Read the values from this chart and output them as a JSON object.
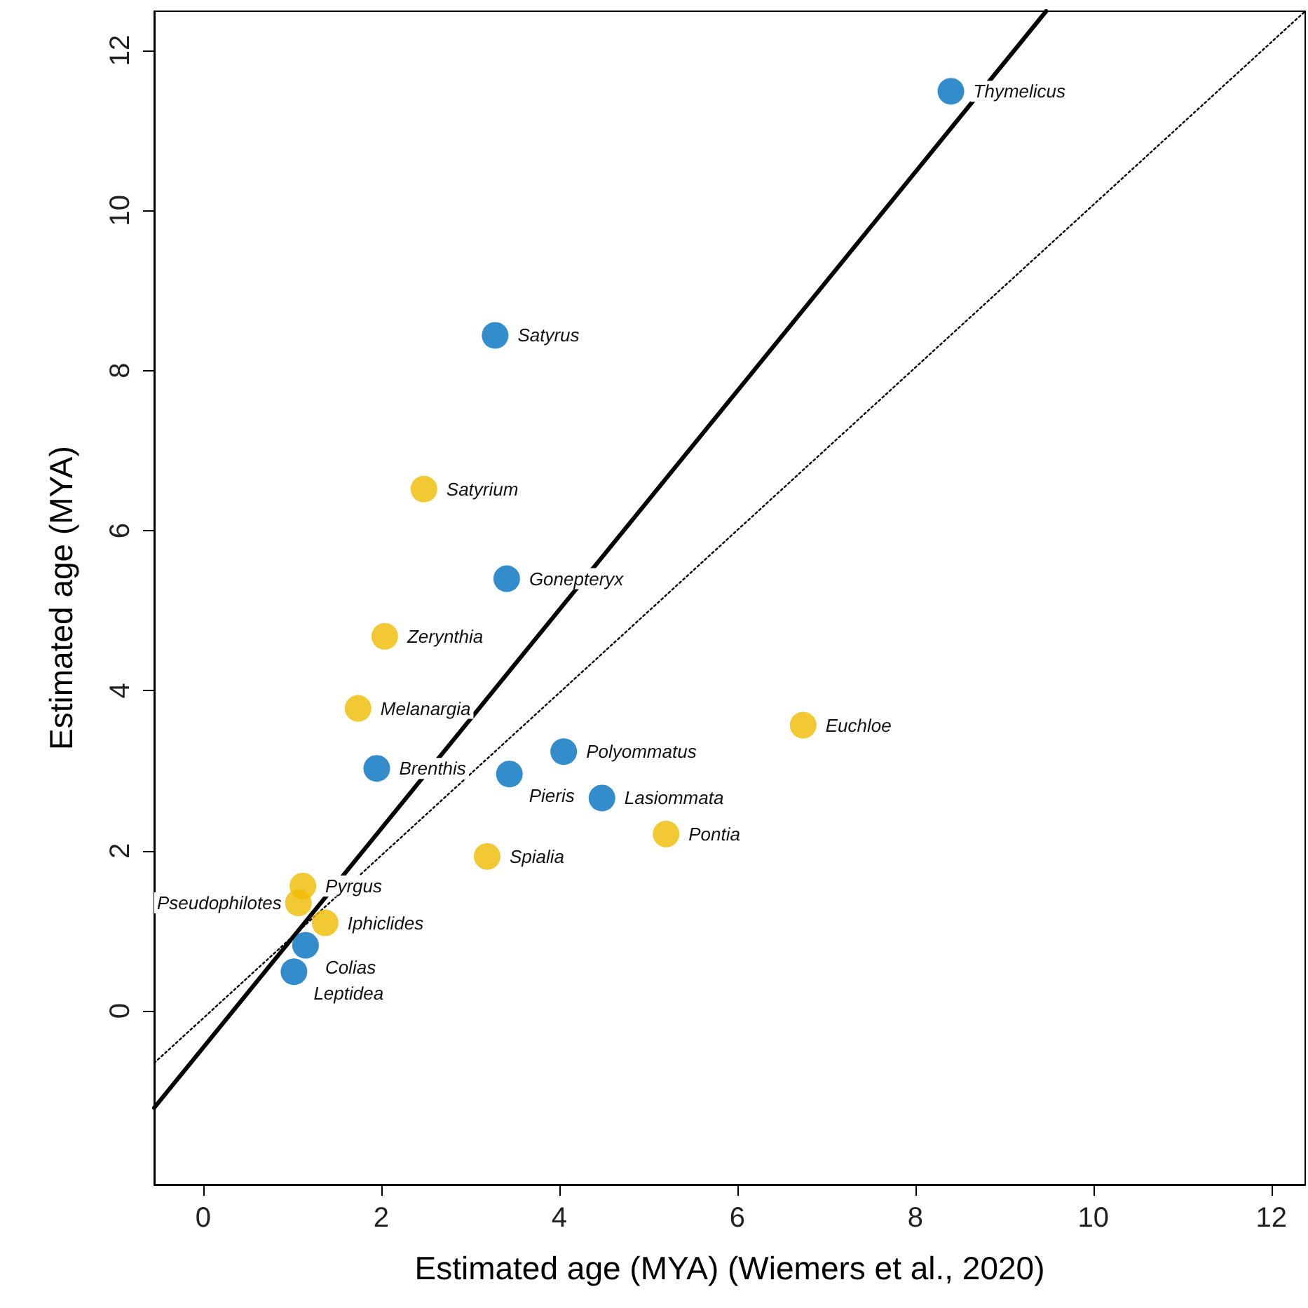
{
  "chart_data": {
    "type": "scatter",
    "xlabel": "Estimated age (MYA) (Wiemers et al., 2020)",
    "ylabel": "Estimated age (MYA)",
    "xlim": [
      -0.55,
      12.38
    ],
    "ylim": [
      -2.17,
      12.49
    ],
    "xticks": [
      0,
      2,
      4,
      6,
      8,
      10,
      12
    ],
    "yticks": [
      0,
      2,
      4,
      6,
      8,
      10,
      12
    ],
    "grid": false,
    "marker": "circle",
    "series": [
      {
        "color": "#0070c0",
        "x": [
          8.4,
          3.28,
          3.41,
          4.05,
          1.95,
          3.44,
          4.48,
          1.15,
          1.02
        ],
        "values": [
          11.49,
          8.44,
          5.4,
          3.24,
          3.03,
          2.96,
          2.66,
          0.82,
          0.49
        ]
      },
      {
        "color": "#f0bc00",
        "x": [
          2.48,
          2.04,
          1.74,
          6.74,
          5.2,
          3.19,
          1.12,
          1.07,
          1.37
        ],
        "values": [
          6.52,
          4.68,
          3.78,
          3.57,
          2.21,
          1.93,
          1.56,
          1.35,
          1.1
        ]
      },
      {
        "type": "line",
        "color": "#000000",
        "line_style": "solid",
        "marker": "none",
        "x": [
          -0.55,
          9.47
        ],
        "values": [
          -1.21,
          12.49
        ]
      },
      {
        "type": "line",
        "color": "#000000",
        "line_style": "dotted",
        "marker": "none",
        "x": [
          -0.55,
          12.38
        ],
        "values": [
          -0.65,
          12.49
        ]
      }
    ],
    "annotations": [
      {
        "text": "Thymelicus",
        "x": 8.4,
        "y": 11.49
      },
      {
        "text": "Satyrus",
        "x": 3.28,
        "y": 8.44
      },
      {
        "text": "Satyrium",
        "x": 2.48,
        "y": 6.52
      },
      {
        "text": "Gonepteryx",
        "x": 3.41,
        "y": 5.4
      },
      {
        "text": "Zerynthia",
        "x": 2.04,
        "y": 4.68
      },
      {
        "text": "Melanargia",
        "x": 1.74,
        "y": 3.78
      },
      {
        "text": "Euchloe",
        "x": 6.74,
        "y": 3.57
      },
      {
        "text": "Polyommatus",
        "x": 4.05,
        "y": 3.24
      },
      {
        "text": "Brenthis",
        "x": 1.95,
        "y": 3.03
      },
      {
        "text": "Pieris",
        "x": 3.44,
        "y": 2.96
      },
      {
        "text": "Lasiommata",
        "x": 4.48,
        "y": 2.66
      },
      {
        "text": "Pontia",
        "x": 5.2,
        "y": 2.21
      },
      {
        "text": "Spialia",
        "x": 3.19,
        "y": 1.93
      },
      {
        "text": "Pyrgus",
        "x": 1.12,
        "y": 1.56
      },
      {
        "text": "Pseudophilotes",
        "x": 1.07,
        "y": 1.35
      },
      {
        "text": "Iphiclides",
        "x": 1.37,
        "y": 1.1
      },
      {
        "text": "Colias",
        "x": 1.15,
        "y": 0.82
      },
      {
        "text": "Leptidea",
        "x": 1.02,
        "y": 0.49
      }
    ]
  }
}
